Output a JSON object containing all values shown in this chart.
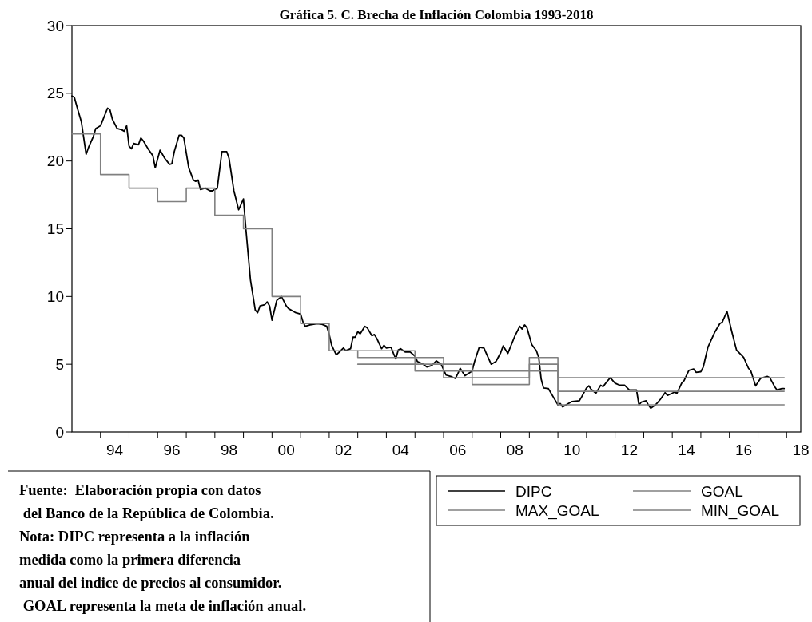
{
  "chart_data": {
    "type": "line",
    "title": "Gráfica 5. C.  Brecha de Inflación Colombia 1993-2018",
    "xlim": [
      "1993-01",
      "2018-07"
    ],
    "xticks": [
      {
        "value": "1994",
        "label": null
      },
      {
        "value": "1994-07",
        "label": "94"
      },
      {
        "value": "1995",
        "label": null
      },
      {
        "value": "1996",
        "label": null
      },
      {
        "value": "1996-07",
        "label": "96"
      },
      {
        "value": "1997",
        "label": null
      },
      {
        "value": "1998",
        "label": null
      },
      {
        "value": "1998-07",
        "label": "98"
      },
      {
        "value": "1999",
        "label": null
      },
      {
        "value": "2000",
        "label": null
      },
      {
        "value": "2000-07",
        "label": "00"
      },
      {
        "value": "2001",
        "label": null
      },
      {
        "value": "2002",
        "label": null
      },
      {
        "value": "2002-07",
        "label": "02"
      },
      {
        "value": "2003",
        "label": null
      },
      {
        "value": "2004",
        "label": null
      },
      {
        "value": "2004-07",
        "label": "04"
      },
      {
        "value": "2005",
        "label": null
      },
      {
        "value": "2006",
        "label": null
      },
      {
        "value": "2006-07",
        "label": "06"
      },
      {
        "value": "2007",
        "label": null
      },
      {
        "value": "2008",
        "label": null
      },
      {
        "value": "2008-07",
        "label": "08"
      },
      {
        "value": "2009",
        "label": null
      },
      {
        "value": "2010",
        "label": null
      },
      {
        "value": "2010-07",
        "label": "10"
      },
      {
        "value": "2011",
        "label": null
      },
      {
        "value": "2012",
        "label": null
      },
      {
        "value": "2012-07",
        "label": "12"
      },
      {
        "value": "2013",
        "label": null
      },
      {
        "value": "2014",
        "label": null
      },
      {
        "value": "2014-07",
        "label": "14"
      },
      {
        "value": "2015",
        "label": null
      },
      {
        "value": "2016",
        "label": null
      },
      {
        "value": "2016-07",
        "label": "16"
      },
      {
        "value": "2017",
        "label": null
      },
      {
        "value": "2018",
        "label": null
      },
      {
        "value": "2018-07",
        "label": "18"
      }
    ],
    "ylim": [
      0,
      30
    ],
    "yticks": [
      0,
      5,
      10,
      15,
      20,
      25,
      30
    ],
    "grid": false,
    "legend": "bottom",
    "line_style": "solid",
    "marker": "none",
    "series": [
      {
        "name": "DIPC",
        "color": "#000000",
        "x": [
          "1993-01",
          "1993-02",
          "1993-03",
          "1993-05",
          "1993-07",
          "1993-08",
          "1993-10",
          "1993-11",
          "1994-01",
          "1994-04",
          "1994-05",
          "1994-06",
          "1994-08",
          "1994-10",
          "1994-11",
          "1994-12",
          "1995-01",
          "1995-02",
          "1995-03",
          "1995-05",
          "1995-06",
          "1995-07",
          "1995-09",
          "1995-11",
          "1995-12",
          "1996-02",
          "1996-04",
          "1996-06",
          "1996-07",
          "1996-08",
          "1996-10",
          "1996-11",
          "1996-12",
          "1997-02",
          "1997-04",
          "1997-05",
          "1997-06",
          "1997-07",
          "1997-09",
          "1997-11",
          "1997-12",
          "1998-02",
          "1998-04",
          "1998-06",
          "1998-07",
          "1998-09",
          "1998-11",
          "1999-01",
          "1999-02",
          "1999-04",
          "1999-06",
          "1999-07",
          "1999-08",
          "1999-10",
          "1999-11",
          "1999-12",
          "2000-01",
          "2000-03",
          "2000-05",
          "2000-07",
          "2000-08",
          "2000-11",
          "2001-01",
          "2001-02",
          "2001-03",
          "2001-05",
          "2001-08",
          "2001-10",
          "2001-12",
          "2002-01",
          "2002-02",
          "2002-04",
          "2002-05",
          "2002-07",
          "2002-08",
          "2002-10",
          "2002-11",
          "2002-12",
          "2003-01",
          "2003-02",
          "2003-04",
          "2003-05",
          "2003-07",
          "2003-08",
          "2003-09",
          "2003-11",
          "2003-12",
          "2004-01",
          "2004-03",
          "2004-04",
          "2004-05",
          "2004-06",
          "2004-07",
          "2004-09",
          "2004-11",
          "2005-01",
          "2005-02",
          "2005-04",
          "2005-06",
          "2005-08",
          "2005-10",
          "2005-12",
          "2006-02",
          "2006-04",
          "2006-06",
          "2006-07",
          "2006-08",
          "2006-10",
          "2007-01",
          "2007-02",
          "2007-04",
          "2007-06",
          "2007-07",
          "2007-09",
          "2007-11",
          "2008-01",
          "2008-02",
          "2008-04",
          "2008-07",
          "2008-09",
          "2008-10",
          "2008-11",
          "2008-12",
          "2009-02",
          "2009-04",
          "2009-05",
          "2009-06",
          "2009-07",
          "2009-09",
          "2009-11",
          "2010-01",
          "2010-02",
          "2010-03",
          "2010-07",
          "2010-10",
          "2010-11",
          "2011-01",
          "2011-02",
          "2011-03",
          "2011-05",
          "2011-07",
          "2011-08",
          "2011-10",
          "2011-11",
          "2012-01",
          "2012-03",
          "2012-05",
          "2012-07",
          "2012-10",
          "2012-11",
          "2012-12",
          "2013-02",
          "2013-03",
          "2013-04",
          "2013-06",
          "2013-08",
          "2013-10",
          "2013-11",
          "2014-02",
          "2014-03",
          "2014-05",
          "2014-06",
          "2014-08",
          "2014-10",
          "2014-11",
          "2015-01",
          "2015-02",
          "2015-04",
          "2015-07",
          "2015-09",
          "2015-10",
          "2015-12",
          "2016-02",
          "2016-04",
          "2016-07",
          "2016-09",
          "2016-10",
          "2016-12",
          "2017-02",
          "2017-05",
          "2017-06",
          "2017-08",
          "2017-09",
          "2017-11",
          "2017-12"
        ],
        "values": [
          24.8,
          24.7,
          24.1,
          22.9,
          20.5,
          21.0,
          21.8,
          22.4,
          22.6,
          23.9,
          23.8,
          23.1,
          22.4,
          22.3,
          22.2,
          22.6,
          21.1,
          20.9,
          21.3,
          21.2,
          21.7,
          21.5,
          20.9,
          20.4,
          19.5,
          20.8,
          20.2,
          19.75,
          19.8,
          20.7,
          21.9,
          21.9,
          21.7,
          19.5,
          18.6,
          18.5,
          18.6,
          17.9,
          18.0,
          17.8,
          17.8,
          18.0,
          20.7,
          20.7,
          20.2,
          17.8,
          16.4,
          17.2,
          15.0,
          11.2,
          9.0,
          8.8,
          9.3,
          9.4,
          9.6,
          9.3,
          8.25,
          9.7,
          10.0,
          9.3,
          9.1,
          8.8,
          8.7,
          8.1,
          7.8,
          7.9,
          8.0,
          7.95,
          7.8,
          7.2,
          6.4,
          5.7,
          5.85,
          6.2,
          6.0,
          6.15,
          7.0,
          7.0,
          7.4,
          7.25,
          7.8,
          7.7,
          7.1,
          7.2,
          6.9,
          6.15,
          6.4,
          6.2,
          6.25,
          5.8,
          5.4,
          6.05,
          6.15,
          5.9,
          5.9,
          5.6,
          5.2,
          5.05,
          4.8,
          4.9,
          5.25,
          5.0,
          4.2,
          4.1,
          3.95,
          4.3,
          4.7,
          4.15,
          4.5,
          5.2,
          6.25,
          6.2,
          5.8,
          5.0,
          5.2,
          5.85,
          6.35,
          5.8,
          7.1,
          7.8,
          7.6,
          7.9,
          7.7,
          6.45,
          6.0,
          5.5,
          3.9,
          3.25,
          3.2,
          2.6,
          2.0,
          2.1,
          1.85,
          2.25,
          2.3,
          2.6,
          3.25,
          3.4,
          3.15,
          2.85,
          3.45,
          3.35,
          3.8,
          4.0,
          3.6,
          3.45,
          3.45,
          3.1,
          3.1,
          2.0,
          2.2,
          2.3,
          2.0,
          1.75,
          2.0,
          2.4,
          2.9,
          2.7,
          2.95,
          2.85,
          3.6,
          3.8,
          4.55,
          4.65,
          4.4,
          4.45,
          4.8,
          6.25,
          7.4,
          8.0,
          8.1,
          8.9,
          7.4,
          6.05,
          5.5,
          4.7,
          4.5,
          3.4,
          3.95,
          4.1,
          4.0,
          3.35,
          3.1,
          3.2,
          3.2
        ]
      },
      {
        "name": "GOAL",
        "color": "#808080",
        "type": "step",
        "x": [
          "1993",
          "1994",
          "1995",
          "1996",
          "1997",
          "1998",
          "1999",
          "2000",
          "2001",
          "2002",
          "2003",
          "2004",
          "2005",
          "2006",
          "2007",
          "2008",
          "2009",
          "2010",
          "2011",
          "2012",
          "2013",
          "2014",
          "2015",
          "2016",
          "2017",
          "2017-12"
        ],
        "values": [
          22,
          19,
          18,
          17,
          18,
          16,
          15,
          10,
          8,
          6,
          5.5,
          5.5,
          5,
          4.5,
          4,
          4,
          5,
          3,
          3,
          3,
          3,
          3,
          3,
          3,
          3,
          3
        ]
      },
      {
        "name": "MAX_GOAL",
        "color": "#808080",
        "type": "step",
        "x": [
          "2003",
          "2004",
          "2005",
          "2006",
          "2007",
          "2008",
          "2009",
          "2010",
          "2011",
          "2012",
          "2013",
          "2014",
          "2015",
          "2016",
          "2017",
          "2017-12"
        ],
        "values": [
          6,
          6,
          5.5,
          5,
          4.5,
          4.5,
          5.5,
          4,
          4,
          4,
          4,
          4,
          4,
          4,
          4,
          4
        ]
      },
      {
        "name": "MIN_GOAL",
        "color": "#808080",
        "type": "step",
        "x": [
          "2003",
          "2004",
          "2005",
          "2006",
          "2007",
          "2008",
          "2009",
          "2010",
          "2011",
          "2012",
          "2013",
          "2014",
          "2015",
          "2016",
          "2017",
          "2017-12"
        ],
        "values": [
          5,
          5,
          4.5,
          4,
          3.5,
          3.5,
          4.5,
          2,
          2,
          2,
          2,
          2,
          2,
          2,
          2,
          2
        ]
      }
    ],
    "annotations": [
      "Fuente:  Elaboración propia con datos",
      " del Banco de la República de Colombia.",
      "Nota: DIPC representa a la inflación",
      "medida como la primera diferencia",
      "anual del indice de precios al consumidor.",
      " GOAL representa la meta de inflación anual."
    ]
  }
}
